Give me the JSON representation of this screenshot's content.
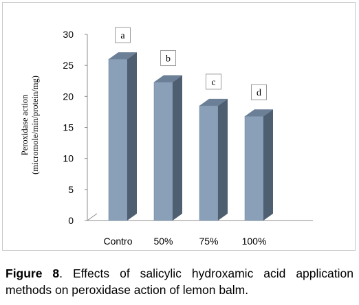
{
  "chart_data": {
    "type": "bar",
    "style": "3d",
    "categories": [
      "Contro",
      "50%",
      "75%",
      "100%"
    ],
    "values": [
      26,
      22.3,
      18.5,
      16.8
    ],
    "bar_labels": [
      "a",
      "b",
      "c",
      "d"
    ],
    "ylabel_line1": "Peroxidase action",
    "ylabel_line2": "(micromole/min/protein/mg)",
    "ylim": [
      0,
      30
    ],
    "yticks": [
      0,
      5,
      10,
      15,
      20,
      25,
      30
    ],
    "grid": false,
    "legend": "none",
    "colors": {
      "bar_front": "#8aa0b9",
      "bar_side": "#4f5f72",
      "bar_top": "#6b7f96",
      "axis": "#8c8c8c"
    }
  },
  "caption": {
    "label": "Figure 8",
    "text": ". Effects of salicylic hydroxamic acid application methods on peroxidase action of lemon balm."
  }
}
